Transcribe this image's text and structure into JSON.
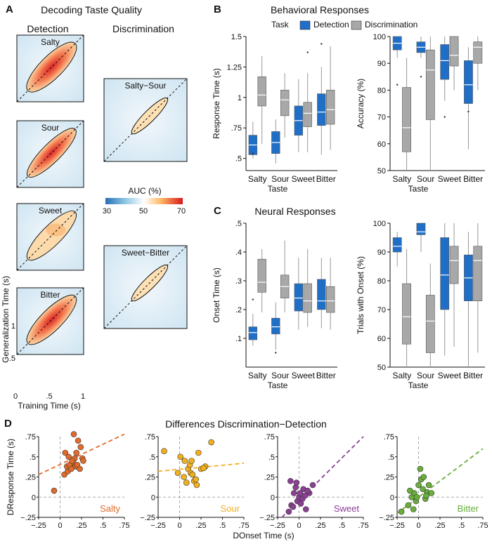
{
  "panels": {
    "A": {
      "letter": "A",
      "title": "Decoding Taste Quality",
      "col_detection": "Detection",
      "col_discrimination": "Discrimination",
      "ylabel": "Generalization Time (s)",
      "xlabel": "Training Time (s)",
      "ticks": [
        "0",
        ".5",
        "1"
      ],
      "maps": [
        "Salty",
        "Sour",
        "Sweet",
        "Bitter"
      ],
      "disc_maps": [
        "Salty−Sour",
        "Sweet−Bitter"
      ],
      "colorbar": {
        "label": "AUC (%)",
        "ticks": [
          "30",
          "50",
          "70"
        ],
        "colors": [
          "#2a6db5",
          "#ffffff",
          "#e3261d"
        ]
      }
    },
    "B": {
      "letter": "B",
      "title": "Behavioral Responses"
    },
    "C": {
      "letter": "C",
      "title": "Neural Responses"
    },
    "D": {
      "letter": "D",
      "title": "Differences Discrimination−Detection"
    },
    "legend": {
      "title": "Task",
      "items": [
        {
          "label": "Detection",
          "color": "#1f6fc8"
        },
        {
          "label": "Discrimination",
          "color": "#a8a8a8"
        }
      ]
    },
    "taste_xlabel": "Taste"
  },
  "chart_data": [
    {
      "id": "B-rt",
      "type": "box",
      "categories": [
        "Salty",
        "Sour",
        "Sweet",
        "Bitter"
      ],
      "xlabel": "Taste",
      "ylabel": "Response Time (s)",
      "ylim": [
        0.4,
        1.5
      ],
      "yticks": [
        0.5,
        0.75,
        1,
        1.25,
        1.5
      ],
      "ytick_labels": [
        ".5",
        ".75",
        "1",
        "1.25",
        "1.5"
      ],
      "series": [
        {
          "name": "Detection",
          "color": "#1f6fc8",
          "boxes": [
            [
              0.53,
              0.61,
              0.69,
              0.5,
              0.8
            ],
            [
              0.54,
              0.63,
              0.72,
              0.46,
              0.82
            ],
            [
              0.69,
              0.81,
              0.93,
              0.55,
              1.15
            ],
            [
              0.77,
              0.88,
              1.03,
              0.53,
              1.25
            ]
          ],
          "outliers": [
            [
              0.54
            ],
            [],
            [],
            [
              1.44
            ]
          ]
        },
        {
          "name": "Discrimination",
          "color": "#a8a8a8",
          "boxes": [
            [
              0.93,
              1.02,
              1.17,
              0.62,
              1.34
            ],
            [
              0.85,
              0.98,
              1.06,
              0.67,
              1.2
            ],
            [
              0.76,
              0.87,
              0.96,
              0.55,
              1.2
            ],
            [
              0.78,
              0.9,
              1.06,
              0.57,
              1.42
            ]
          ],
          "outliers": [
            [],
            [],
            [
              1.37
            ],
            []
          ]
        }
      ]
    },
    {
      "id": "B-acc",
      "type": "box",
      "categories": [
        "Salty",
        "Sour",
        "Sweet",
        "Bitter"
      ],
      "xlabel": "Taste",
      "ylabel": "Accuracy (%)",
      "ylim": [
        50,
        100
      ],
      "yticks": [
        50,
        60,
        70,
        80,
        90,
        100
      ],
      "ytick_labels": [
        "50",
        "60",
        "70",
        "80",
        "90",
        "100"
      ],
      "series": [
        {
          "name": "Detection",
          "color": "#1f6fc8",
          "boxes": [
            [
              95,
              97.5,
              100,
              92,
              100
            ],
            [
              94,
              96,
              98,
              92,
              100
            ],
            [
              84,
              91,
              97,
              76,
              100
            ],
            [
              75,
              82,
              91,
              58,
              96
            ]
          ],
          "outliers": [
            [
              82
            ],
            [
              85
            ],
            [
              70
            ],
            [
              72
            ]
          ]
        },
        {
          "name": "Discrimination",
          "color": "#a8a8a8",
          "boxes": [
            [
              57,
              66,
              81,
              50,
              92
            ],
            [
              69,
              87.5,
              95,
              50,
              100
            ],
            [
              89,
              93,
              100,
              80,
              100
            ],
            [
              90,
              96,
              98,
              80,
              100
            ]
          ],
          "outliers": [
            [],
            [],
            [],
            []
          ]
        }
      ]
    },
    {
      "id": "C-onset",
      "type": "box",
      "categories": [
        "Salty",
        "Sour",
        "Sweet",
        "Bitter"
      ],
      "xlabel": "Taste",
      "ylabel": "Onset Time (s)",
      "ylim": [
        0,
        0.5
      ],
      "yticks": [
        0.1,
        0.2,
        0.3,
        0.4,
        0.5
      ],
      "ytick_labels": [
        ".1",
        ".2",
        ".3",
        ".4",
        ".5"
      ],
      "series": [
        {
          "name": "Detection",
          "color": "#1f6fc8",
          "boxes": [
            [
              0.095,
              0.12,
              0.14,
              0.075,
              0.185
            ],
            [
              0.115,
              0.14,
              0.17,
              0.06,
              0.225
            ],
            [
              0.195,
              0.24,
              0.29,
              0.13,
              0.38
            ],
            [
              0.2,
              0.23,
              0.305,
              0.135,
              0.38
            ]
          ],
          "outliers": [
            [
              0.235
            ],
            [
              0.05
            ],
            [],
            []
          ]
        },
        {
          "name": "Discrimination",
          "color": "#a8a8a8",
          "boxes": [
            [
              0.26,
              0.295,
              0.375,
              0.19,
              0.41
            ],
            [
              0.24,
              0.28,
              0.32,
              0.19,
              0.44
            ],
            [
              0.19,
              0.23,
              0.29,
              0.14,
              0.41
            ],
            [
              0.19,
              0.23,
              0.28,
              0.13,
              0.38
            ]
          ],
          "outliers": [
            [],
            [],
            [],
            []
          ]
        }
      ]
    },
    {
      "id": "C-trials",
      "type": "box",
      "categories": [
        "Salty",
        "Sour",
        "Sweet",
        "Bitter"
      ],
      "xlabel": "Taste",
      "ylabel": "Trials with Onset (%)",
      "ylim": [
        50,
        100
      ],
      "yticks": [
        50,
        60,
        70,
        80,
        90,
        100
      ],
      "ytick_labels": [
        "50",
        "60",
        "70",
        "80",
        "90",
        "100"
      ],
      "series": [
        {
          "name": "Detection",
          "color": "#1f6fc8",
          "boxes": [
            [
              90,
              92,
              95,
              85,
              97
            ],
            [
              96,
              97,
              100,
              90,
              100
            ],
            [
              70,
              82,
              95,
              54,
              100
            ],
            [
              73,
              81,
              89,
              50,
              97
            ]
          ],
          "outliers": [
            [],
            [],
            [],
            []
          ]
        },
        {
          "name": "Discrimination",
          "color": "#a8a8a8",
          "boxes": [
            [
              58,
              67.5,
              79,
              50,
              91
            ],
            [
              55,
              66,
              75,
              50,
              86
            ],
            [
              79,
              87,
              92,
              57,
              100
            ],
            [
              73,
              87,
              92,
              55,
              100
            ]
          ],
          "outliers": [
            [],
            [],
            [],
            []
          ]
        }
      ]
    },
    {
      "id": "D-salty",
      "type": "scatter",
      "label": "Salty",
      "color": "#e06a2b",
      "xlabel": "",
      "ylabel": "DResponse Time (s)",
      "xlim": [
        -0.25,
        0.75
      ],
      "ylim": [
        -0.25,
        0.75
      ],
      "fit": [
        -0.25,
        0.28,
        0.75,
        0.78
      ],
      "x": [
        -0.07,
        0.05,
        0.09,
        0.12,
        0.15,
        0.17,
        0.19,
        0.24,
        0.26,
        0.27,
        0.08,
        0.11,
        0.14,
        0.18,
        0.2,
        0.23,
        0.1,
        0.16,
        0.21,
        0.13,
        0.06
      ],
      "y": [
        0.08,
        0.28,
        0.32,
        0.38,
        0.42,
        0.48,
        0.55,
        0.62,
        0.48,
        0.45,
        0.38,
        0.4,
        0.45,
        0.38,
        0.4,
        0.35,
        0.5,
        0.78,
        0.7,
        0.35,
        0.55
      ]
    },
    {
      "id": "D-sour",
      "type": "scatter",
      "label": "Sour",
      "color": "#f2b01e",
      "xlabel": "",
      "ylabel": "",
      "xlim": [
        -0.25,
        0.75
      ],
      "ylim": [
        -0.25,
        0.75
      ],
      "fit": [
        -0.25,
        0.32,
        0.75,
        0.42
      ],
      "x": [
        -0.18,
        0.01,
        0.06,
        0.1,
        0.13,
        0.17,
        0.2,
        0.25,
        0.3,
        0.37,
        0.05,
        0.08,
        0.12,
        0.15,
        0.19,
        0.22,
        -0.02,
        0.14,
        0.28
      ],
      "y": [
        0.57,
        0.5,
        0.45,
        0.35,
        0.3,
        0.2,
        0.15,
        0.35,
        0.38,
        0.68,
        0.25,
        0.18,
        0.4,
        0.28,
        0.22,
        0.55,
        0.3,
        0.45,
        0.36
      ]
    },
    {
      "id": "D-sweet",
      "type": "scatter",
      "label": "Sweet",
      "color": "#8b3f95",
      "xlabel": "DOnset Time (s)",
      "ylabel": "",
      "xlim": [
        -0.25,
        0.75
      ],
      "ylim": [
        -0.25,
        0.75
      ],
      "fit": [
        -0.2,
        -0.25,
        0.75,
        0.75
      ],
      "x": [
        -0.12,
        -0.09,
        -0.06,
        -0.04,
        -0.02,
        0.0,
        0.02,
        0.05,
        0.08,
        0.12,
        0.16,
        -0.1,
        -0.03,
        0.04,
        0.07,
        0.1,
        -0.07,
        0.01
      ],
      "y": [
        -0.18,
        -0.1,
        0.05,
        0.12,
        -0.05,
        0.0,
        -0.08,
        0.1,
        -0.15,
        0.05,
        0.15,
        0.2,
        0.18,
        -0.02,
        0.02,
        0.08,
        -0.12,
        0.05
      ]
    },
    {
      "id": "D-bitter",
      "type": "scatter",
      "label": "Bitter",
      "color": "#6aae3c",
      "xlabel": "",
      "ylabel": "",
      "xlim": [
        -0.25,
        0.75
      ],
      "ylim": [
        -0.25,
        0.75
      ],
      "fit": [
        -0.25,
        -0.2,
        0.75,
        0.6
      ],
      "x": [
        -0.2,
        -0.12,
        -0.08,
        -0.05,
        -0.03,
        0.0,
        0.03,
        0.05,
        0.08,
        0.1,
        0.12,
        -0.1,
        -0.02,
        0.02,
        0.06,
        0.09,
        0.15,
        -0.06
      ],
      "y": [
        -0.18,
        -0.1,
        0.0,
        0.05,
        -0.05,
        0.15,
        0.22,
        0.1,
        -0.02,
        0.06,
        0.15,
        0.08,
        0.0,
        0.35,
        0.25,
        0.02,
        0.05,
        -0.15
      ]
    }
  ]
}
